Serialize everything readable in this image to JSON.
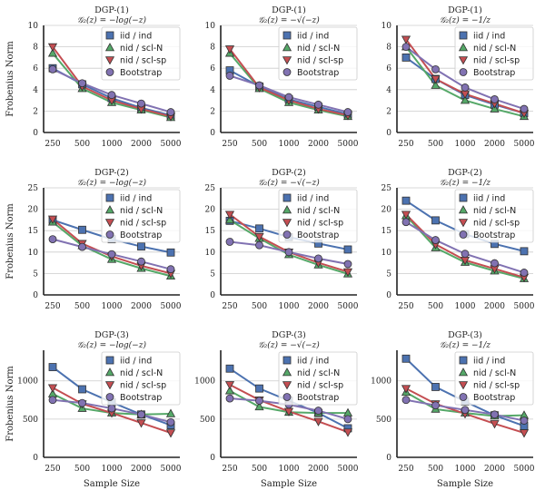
{
  "colors": {
    "iid_ind": "#4c72b0",
    "nid_sclN": "#55a868",
    "nid_sclsp": "#c44e52",
    "bootstrap": "#8172b2",
    "grid": "#cccccc",
    "axis": "#222222"
  },
  "chart_data": [
    {
      "type": "line",
      "title": "DGP-(1)",
      "subtitle": "𝒢₂(z) = −log(−z)",
      "categories": [
        "250",
        "500",
        "1000",
        "2000",
        "5000"
      ],
      "ylabel": "Frobenius Norm",
      "xlabel": "",
      "ylim": [
        0,
        10
      ],
      "yticks": [
        0,
        2,
        4,
        6,
        8,
        10
      ],
      "yticklabels": [
        "0",
        "2",
        "4",
        "6",
        "8",
        "10"
      ],
      "legend": [
        "iid / ind",
        "nid / scl-N",
        "nid / scl-sp",
        "Bootstrap"
      ],
      "series": [
        {
          "name": "iid / ind",
          "values": [
            6.0,
            4.5,
            3.2,
            2.3,
            1.6
          ]
        },
        {
          "name": "nid / scl-N",
          "values": [
            7.4,
            4.1,
            2.8,
            2.1,
            1.4
          ]
        },
        {
          "name": "nid / scl-sp",
          "values": [
            8.0,
            4.3,
            3.0,
            2.2,
            1.5
          ]
        },
        {
          "name": "Bootstrap",
          "values": [
            5.9,
            4.6,
            3.5,
            2.7,
            1.9
          ]
        }
      ]
    },
    {
      "type": "line",
      "title": "DGP-(1)",
      "subtitle": "𝒢₂(z) = −√(−z)",
      "categories": [
        "250",
        "500",
        "1000",
        "2000",
        "5000"
      ],
      "ylabel": "",
      "xlabel": "",
      "ylim": [
        0,
        10
      ],
      "yticks": [
        0,
        2,
        4,
        6,
        8,
        10
      ],
      "yticklabels": [
        "0",
        "2",
        "4",
        "6",
        "8",
        "10"
      ],
      "legend": [
        "iid / ind",
        "nid / scl-N",
        "nid / scl-sp",
        "Bootstrap"
      ],
      "series": [
        {
          "name": "iid / ind",
          "values": [
            5.8,
            4.3,
            3.1,
            2.4,
            1.7
          ]
        },
        {
          "name": "nid / scl-N",
          "values": [
            7.4,
            4.1,
            2.8,
            2.1,
            1.5
          ]
        },
        {
          "name": "nid / scl-sp",
          "values": [
            7.8,
            4.2,
            3.0,
            2.2,
            1.6
          ]
        },
        {
          "name": "Bootstrap",
          "values": [
            5.3,
            4.4,
            3.3,
            2.6,
            1.9
          ]
        }
      ]
    },
    {
      "type": "line",
      "title": "DGP-(1)",
      "subtitle": "𝒢₂(z) = −1/z",
      "categories": [
        "250",
        "500",
        "1000",
        "2000",
        "5000"
      ],
      "ylabel": "",
      "xlabel": "",
      "ylim": [
        0,
        10
      ],
      "yticks": [
        0,
        2,
        4,
        6,
        8,
        10
      ],
      "yticklabels": [
        "0",
        "2",
        "4",
        "6",
        "8",
        "10"
      ],
      "legend": [
        "iid / ind",
        "nid / scl-N",
        "nid / scl-sp",
        "Bootstrap"
      ],
      "series": [
        {
          "name": "iid / ind",
          "values": [
            7.0,
            5.0,
            3.5,
            2.6,
            1.8
          ]
        },
        {
          "name": "nid / scl-N",
          "values": [
            8.0,
            4.4,
            3.0,
            2.2,
            1.5
          ]
        },
        {
          "name": "nid / scl-sp",
          "values": [
            8.7,
            5.0,
            3.6,
            2.7,
            1.8
          ]
        },
        {
          "name": "Bootstrap",
          "values": [
            8.0,
            5.9,
            4.2,
            3.1,
            2.2
          ]
        }
      ]
    },
    {
      "type": "line",
      "title": "DGP-(2)",
      "subtitle": "𝒢₂(z) = −log(−z)",
      "categories": [
        "250",
        "500",
        "1000",
        "2000",
        "5000"
      ],
      "ylabel": "Frobenius Norm",
      "xlabel": "",
      "ylim": [
        0,
        25
      ],
      "yticks": [
        0,
        5,
        10,
        15,
        20,
        25
      ],
      "yticklabels": [
        "0",
        "5",
        "10",
        "15",
        "20",
        "25"
      ],
      "legend": [
        "iid / ind",
        "nid / scl-N",
        "nid / scl-sp",
        "Bootstrap"
      ],
      "series": [
        {
          "name": "iid / ind",
          "values": [
            17.5,
            15.2,
            13.0,
            11.3,
            9.9
          ]
        },
        {
          "name": "nid / scl-N",
          "values": [
            17.0,
            11.5,
            8.3,
            6.2,
            4.4
          ]
        },
        {
          "name": "nid / scl-sp",
          "values": [
            17.7,
            12.0,
            9.0,
            6.8,
            5.0
          ]
        },
        {
          "name": "Bootstrap",
          "values": [
            13.0,
            11.2,
            9.5,
            7.8,
            6.0
          ]
        }
      ]
    },
    {
      "type": "line",
      "title": "DGP-(2)",
      "subtitle": "𝒢₂(z) = −√(−z)",
      "categories": [
        "250",
        "500",
        "1000",
        "2000",
        "5000"
      ],
      "ylabel": "",
      "xlabel": "",
      "ylim": [
        0,
        25
      ],
      "yticks": [
        0,
        5,
        10,
        15,
        20,
        25
      ],
      "yticklabels": [
        "0",
        "5",
        "10",
        "15",
        "20",
        "25"
      ],
      "legend": [
        "iid / ind",
        "nid / scl-N",
        "nid / scl-sp",
        "Bootstrap"
      ],
      "series": [
        {
          "name": "iid / ind",
          "values": [
            17.3,
            15.5,
            13.5,
            12.0,
            10.6
          ]
        },
        {
          "name": "nid / scl-N",
          "values": [
            17.5,
            13.2,
            9.4,
            7.0,
            4.9
          ]
        },
        {
          "name": "nid / scl-sp",
          "values": [
            18.8,
            13.6,
            10.0,
            7.5,
            5.4
          ]
        },
        {
          "name": "Bootstrap",
          "values": [
            12.4,
            11.6,
            10.0,
            8.5,
            7.2
          ]
        }
      ]
    },
    {
      "type": "line",
      "title": "DGP-(2)",
      "subtitle": "𝒢₂(z) = −1/z",
      "categories": [
        "250",
        "500",
        "1000",
        "2000",
        "5000"
      ],
      "ylabel": "",
      "xlabel": "",
      "ylim": [
        0,
        25
      ],
      "yticks": [
        0,
        5,
        10,
        15,
        20,
        25
      ],
      "yticklabels": [
        "0",
        "5",
        "10",
        "15",
        "20",
        "25"
      ],
      "legend": [
        "iid / ind",
        "nid / scl-N",
        "nid / scl-sp",
        "Bootstrap"
      ],
      "series": [
        {
          "name": "iid / ind",
          "values": [
            22.0,
            17.4,
            14.2,
            11.9,
            10.2
          ]
        },
        {
          "name": "nid / scl-N",
          "values": [
            18.5,
            11.0,
            7.6,
            5.6,
            3.8
          ]
        },
        {
          "name": "nid / scl-sp",
          "values": [
            18.8,
            11.8,
            8.1,
            6.1,
            4.1
          ]
        },
        {
          "name": "Bootstrap",
          "values": [
            17.0,
            12.8,
            9.6,
            7.4,
            5.2
          ]
        }
      ]
    },
    {
      "type": "line",
      "title": "DGP-(3)",
      "subtitle": "𝒢₂(z) = −log(−z)",
      "categories": [
        "250",
        "500",
        "1000",
        "2000",
        "5000"
      ],
      "ylabel": "Frobenius Norm",
      "xlabel": "Sample Size",
      "ylim": [
        0,
        1400
      ],
      "yticks": [
        0,
        500,
        1000
      ],
      "yticklabels": [
        "0",
        "500",
        "1000"
      ],
      "legend": [
        "iid / ind",
        "nid / scl-N",
        "nid / scl-sp",
        "Bootstrap"
      ],
      "series": [
        {
          "name": "iid / ind",
          "values": [
            1180,
            890,
            720,
            560,
            420
          ]
        },
        {
          "name": "nid / scl-N",
          "values": [
            830,
            640,
            580,
            560,
            570
          ]
        },
        {
          "name": "nid / scl-sp",
          "values": [
            910,
            700,
            580,
            450,
            320
          ]
        },
        {
          "name": "Bootstrap",
          "values": [
            750,
            710,
            640,
            560,
            460
          ]
        }
      ]
    },
    {
      "type": "line",
      "title": "DGP-(3)",
      "subtitle": "𝒢₂(z) = −√(−z)",
      "categories": [
        "250",
        "500",
        "1000",
        "2000",
        "5000"
      ],
      "ylabel": "",
      "xlabel": "Sample Size",
      "ylim": [
        0,
        1400
      ],
      "yticks": [
        0,
        500,
        1000
      ],
      "yticklabels": [
        "0",
        "500",
        "1000"
      ],
      "legend": [
        "iid / ind",
        "nid / scl-N",
        "nid / scl-sp",
        "Bootstrap"
      ],
      "series": [
        {
          "name": "iid / ind",
          "values": [
            1160,
            900,
            740,
            580,
            380
          ]
        },
        {
          "name": "nid / scl-N",
          "values": [
            870,
            660,
            590,
            580,
            580
          ]
        },
        {
          "name": "nid / scl-sp",
          "values": [
            950,
            750,
            600,
            470,
            330
          ]
        },
        {
          "name": "Bootstrap",
          "values": [
            770,
            740,
            690,
            610,
            500
          ]
        }
      ]
    },
    {
      "type": "line",
      "title": "DGP-(3)",
      "subtitle": "𝒢₂(z) = −1/z",
      "categories": [
        "250",
        "500",
        "1000",
        "2000",
        "5000"
      ],
      "ylabel": "",
      "xlabel": "Sample Size",
      "ylim": [
        0,
        1400
      ],
      "yticks": [
        0,
        500,
        1000
      ],
      "yticklabels": [
        "0",
        "500",
        "1000"
      ],
      "legend": [
        "iid / ind",
        "nid / scl-N",
        "nid / scl-sp",
        "Bootstrap"
      ],
      "series": [
        {
          "name": "iid / ind",
          "values": [
            1290,
            920,
            730,
            550,
            410
          ]
        },
        {
          "name": "nid / scl-N",
          "values": [
            850,
            630,
            580,
            540,
            550
          ]
        },
        {
          "name": "nid / scl-sp",
          "values": [
            900,
            700,
            570,
            440,
            320
          ]
        },
        {
          "name": "Bootstrap",
          "values": [
            750,
            680,
            620,
            560,
            480
          ]
        }
      ]
    }
  ]
}
